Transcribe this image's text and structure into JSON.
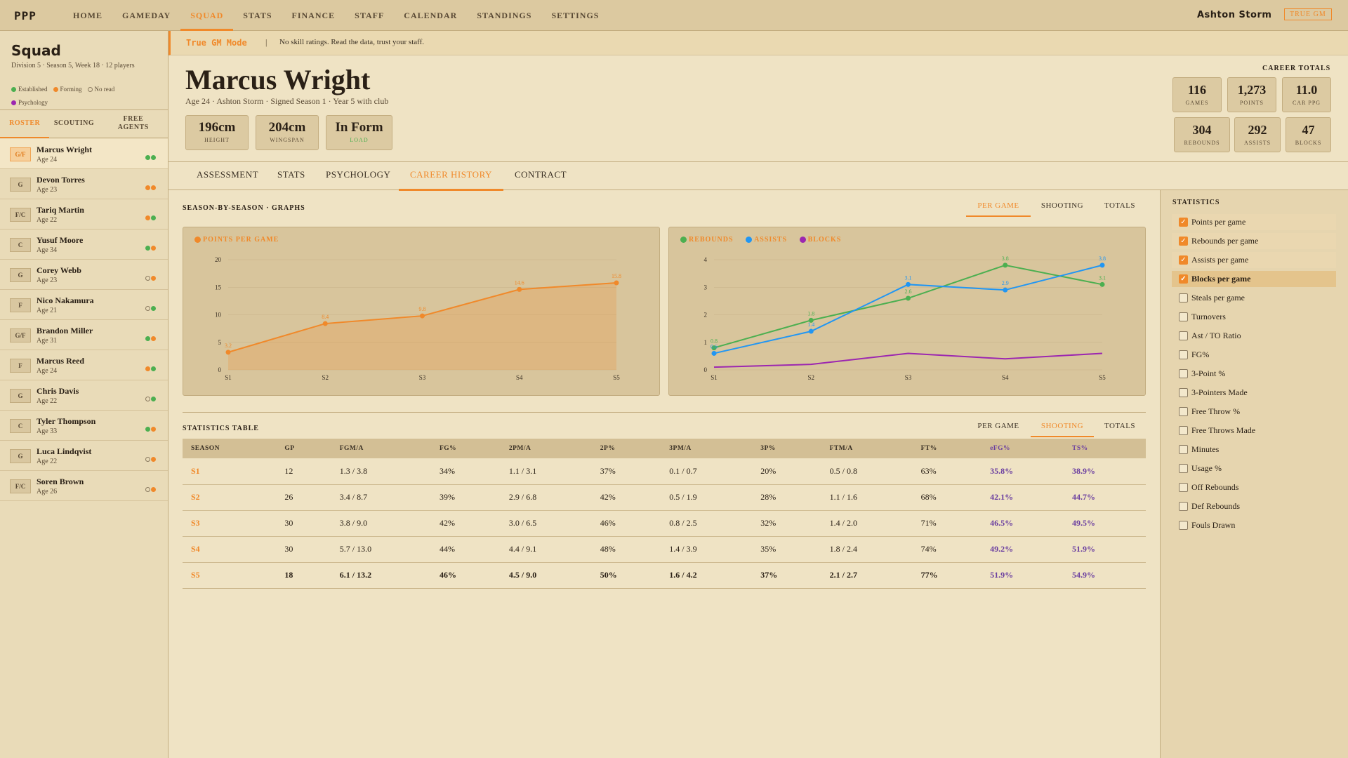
{
  "app": {
    "logo": "PPP"
  },
  "nav": {
    "items": [
      "HOME",
      "GAMEDAY",
      "SQUAD",
      "STATS",
      "FINANCE",
      "STAFF",
      "CALENDAR",
      "STANDINGS",
      "SETTINGS"
    ],
    "active": "SQUAD",
    "team_name": "Ashton Storm",
    "mode_badge": "TRUE GM"
  },
  "sidebar": {
    "title": "Squad",
    "subtitle": "Division 5 · Season 5, Week 18 · 12 players",
    "legend": {
      "established": "Established",
      "forming": "Forming",
      "no_read": "No read",
      "psychology": "Psychology"
    },
    "tabs": [
      "ROSTER",
      "SCOUTING",
      "FREE AGENTS"
    ],
    "active_tab": "ROSTER",
    "players": [
      {
        "pos": "G/F",
        "name": "Marcus Wright",
        "age": "Age 24",
        "dots": [
          "established",
          "established"
        ],
        "selected": true
      },
      {
        "pos": "G",
        "name": "Devon Torres",
        "age": "Age 23",
        "dots": [
          "forming",
          "forming"
        ]
      },
      {
        "pos": "F/C",
        "name": "Tariq Martin",
        "age": "Age 22",
        "dots": [
          "forming",
          "established"
        ]
      },
      {
        "pos": "C",
        "name": "Yusuf Moore",
        "age": "Age 34",
        "dots": [
          "established",
          "forming"
        ]
      },
      {
        "pos": "G",
        "name": "Corey Webb",
        "age": "Age 23",
        "dots": [
          "no-read",
          "forming"
        ]
      },
      {
        "pos": "F",
        "name": "Nico Nakamura",
        "age": "Age 21",
        "dots": [
          "no-read",
          "established"
        ]
      },
      {
        "pos": "G/F",
        "name": "Brandon Miller",
        "age": "Age 31",
        "dots": [
          "established",
          "forming"
        ]
      },
      {
        "pos": "F",
        "name": "Marcus Reed",
        "age": "Age 24",
        "dots": [
          "forming",
          "established"
        ]
      },
      {
        "pos": "G",
        "name": "Chris Davis",
        "age": "Age 22",
        "dots": [
          "no-read",
          "established"
        ]
      },
      {
        "pos": "C",
        "name": "Tyler Thompson",
        "age": "Age 33",
        "dots": [
          "established",
          "forming"
        ]
      },
      {
        "pos": "G",
        "name": "Luca Lindqvist",
        "age": "Age 22",
        "dots": [
          "no-read",
          "forming"
        ]
      },
      {
        "pos": "F/C",
        "name": "Soren Brown",
        "age": "Age 26",
        "dots": [
          "no-read",
          "forming"
        ]
      }
    ]
  },
  "banner": {
    "mode": "True GM Mode",
    "separator": "|",
    "desc": "No skill ratings. Read the data, trust your staff."
  },
  "player": {
    "name": "Marcus Wright",
    "meta": "Age 24 · Ashton Storm · Signed Season 1 · Year 5 with club",
    "attrs": [
      {
        "value": "196cm",
        "label": "HEIGHT"
      },
      {
        "value": "204cm",
        "label": "WINGSPAN"
      },
      {
        "value": "In Form",
        "label": "LOAD"
      }
    ],
    "career_title": "CAREER TOTALS",
    "career": [
      {
        "value": "116",
        "label": "GAMES"
      },
      {
        "value": "1,273",
        "label": "POINTS"
      },
      {
        "value": "11.0",
        "label": "CAR PPG"
      },
      {
        "value": "304",
        "label": "REBOUNDS"
      },
      {
        "value": "292",
        "label": "ASSISTS"
      },
      {
        "value": "47",
        "label": "BLOCKS"
      }
    ]
  },
  "tabs": {
    "items": [
      "ASSESSMENT",
      "STATS",
      "PSYCHOLOGY",
      "CAREER HISTORY",
      "CONTRACT"
    ],
    "active": "CAREER HISTORY"
  },
  "graphs": {
    "title": "SEASON-BY-SEASON · GRAPHS",
    "views": [
      "PER GAME",
      "SHOOTING",
      "TOTALS"
    ],
    "active_view": "PER GAME"
  },
  "colors": {
    "accent": "#f0892a",
    "rebounds": "#4caf50",
    "assists": "#2196f3",
    "blocks": "#9c27b0",
    "efficiency": "#6b3fa0"
  },
  "chart_data": [
    {
      "type": "area",
      "categories": [
        "S1",
        "S2",
        "S3",
        "S4",
        "S5"
      ],
      "series": [
        {
          "name": "POINTS PER GAME",
          "values": [
            3.2,
            8.4,
            9.8,
            14.6,
            15.8
          ],
          "color": "#f0892a"
        }
      ],
      "data_labels": [
        "3.2",
        "8.4",
        "9.8",
        "14.6",
        "15.8"
      ],
      "y_ticks": [
        0,
        5,
        10,
        15,
        20
      ],
      "ylim": [
        0,
        20
      ],
      "grid": true
    },
    {
      "type": "line",
      "categories": [
        "S1",
        "S2",
        "S3",
        "S4",
        "S5"
      ],
      "series": [
        {
          "name": "REBOUNDS",
          "values": [
            0.8,
            1.8,
            2.6,
            3.8,
            3.1
          ],
          "color": "#4caf50",
          "labels": [
            "0.8",
            "1.8",
            "2.6",
            "3.8",
            "3.1"
          ]
        },
        {
          "name": "ASSISTS",
          "values": [
            0.6,
            1.4,
            3.1,
            2.9,
            3.8
          ],
          "color": "#2196f3",
          "labels": [
            "0.6",
            "1.4",
            "3.1",
            "2.9",
            "3.8"
          ]
        },
        {
          "name": "BLOCKS",
          "values": [
            0.1,
            0.2,
            0.6,
            0.4,
            0.6
          ],
          "color": "#9c27b0",
          "labels": []
        }
      ],
      "y_ticks": [
        0,
        1,
        2,
        3,
        4
      ],
      "ylim": [
        0,
        4
      ],
      "grid": true
    },
    {
      "type": "table",
      "title": "STATISTICS TABLE",
      "views": [
        "PER GAME",
        "SHOOTING",
        "TOTALS"
      ],
      "active_view": "SHOOTING",
      "columns": [
        "SEASON",
        "GP",
        "FGM/A",
        "FG%",
        "2PM/A",
        "2P%",
        "3PM/A",
        "3P%",
        "FTM/A",
        "FT%",
        "eFG%",
        "TS%"
      ],
      "rows": [
        [
          "S1",
          "12",
          "1.3 / 3.8",
          "34%",
          "1.1 / 3.1",
          "37%",
          "0.1 / 0.7",
          "20%",
          "0.5 / 0.8",
          "63%",
          "35.8%",
          "38.9%"
        ],
        [
          "S2",
          "26",
          "3.4 / 8.7",
          "39%",
          "2.9 / 6.8",
          "42%",
          "0.5 / 1.9",
          "28%",
          "1.1 / 1.6",
          "68%",
          "42.1%",
          "44.7%"
        ],
        [
          "S3",
          "30",
          "3.8 / 9.0",
          "42%",
          "3.0 / 6.5",
          "46%",
          "0.8 / 2.5",
          "32%",
          "1.4 / 2.0",
          "71%",
          "46.5%",
          "49.5%"
        ],
        [
          "S4",
          "30",
          "5.7 / 13.0",
          "44%",
          "4.4 / 9.1",
          "48%",
          "1.4 / 3.9",
          "35%",
          "1.8 / 2.4",
          "74%",
          "49.2%",
          "51.9%"
        ],
        [
          "S5",
          "18",
          "6.1 / 13.2",
          "46%",
          "4.5 / 9.0",
          "50%",
          "1.6 / 4.2",
          "37%",
          "2.1 / 2.7",
          "77%",
          "51.9%",
          "54.9%"
        ]
      ]
    }
  ],
  "statistics_panel": {
    "title": "STATISTICS",
    "options": [
      {
        "label": "Points per game",
        "checked": true
      },
      {
        "label": "Rebounds per game",
        "checked": true
      },
      {
        "label": "Assists per game",
        "checked": true
      },
      {
        "label": "Blocks per game",
        "checked": true,
        "highlight": true
      },
      {
        "label": "Steals per game",
        "checked": false
      },
      {
        "label": "Turnovers",
        "checked": false
      },
      {
        "label": "Ast / TO Ratio",
        "checked": false
      },
      {
        "label": "FG%",
        "checked": false
      },
      {
        "label": "3-Point %",
        "checked": false
      },
      {
        "label": "3-Pointers Made",
        "checked": false
      },
      {
        "label": "Free Throw %",
        "checked": false
      },
      {
        "label": "Free Throws Made",
        "checked": false
      },
      {
        "label": "Minutes",
        "checked": false
      },
      {
        "label": "Usage %",
        "checked": false
      },
      {
        "label": "Off Rebounds",
        "checked": false
      },
      {
        "label": "Def Rebounds",
        "checked": false
      },
      {
        "label": "Fouls Drawn",
        "checked": false
      }
    ]
  }
}
